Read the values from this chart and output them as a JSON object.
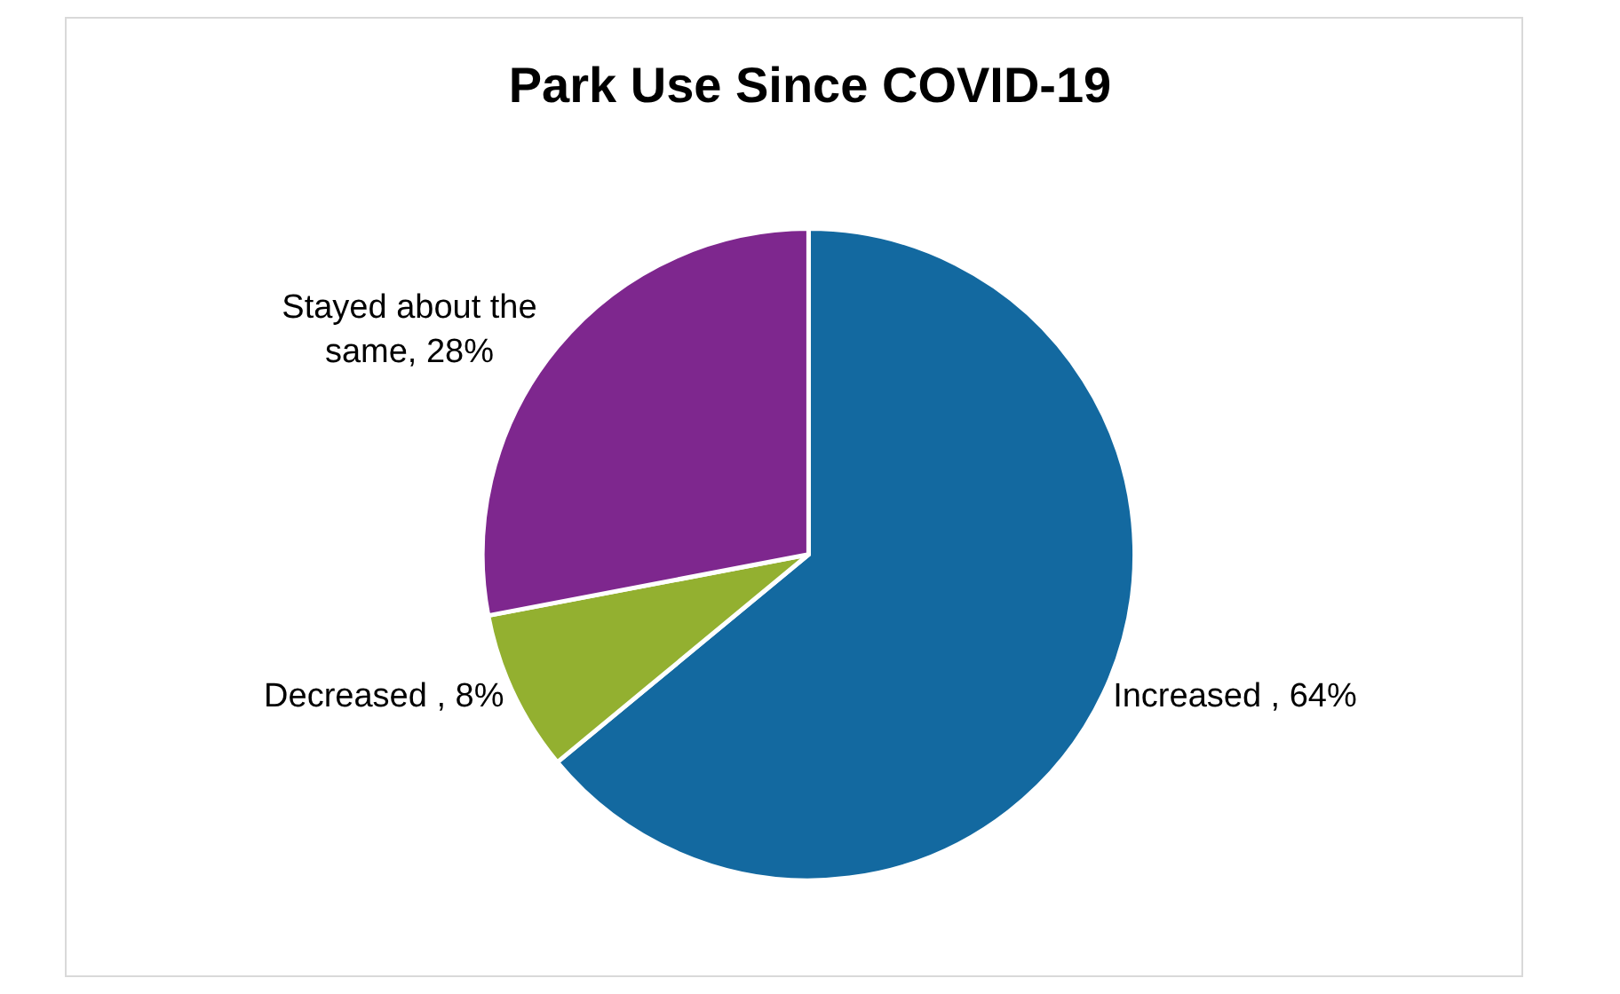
{
  "chart_data": {
    "type": "pie",
    "title": "Park Use Since COVID-19",
    "categories": [
      "Increased ",
      "Decreased ",
      "Stayed about the same"
    ],
    "values": [
      64,
      8,
      28
    ],
    "value_labels": [
      "64%",
      "8%",
      "28%"
    ],
    "colors": [
      "#1369a0",
      "#93b030",
      "#7e278e"
    ],
    "legend": false
  }
}
